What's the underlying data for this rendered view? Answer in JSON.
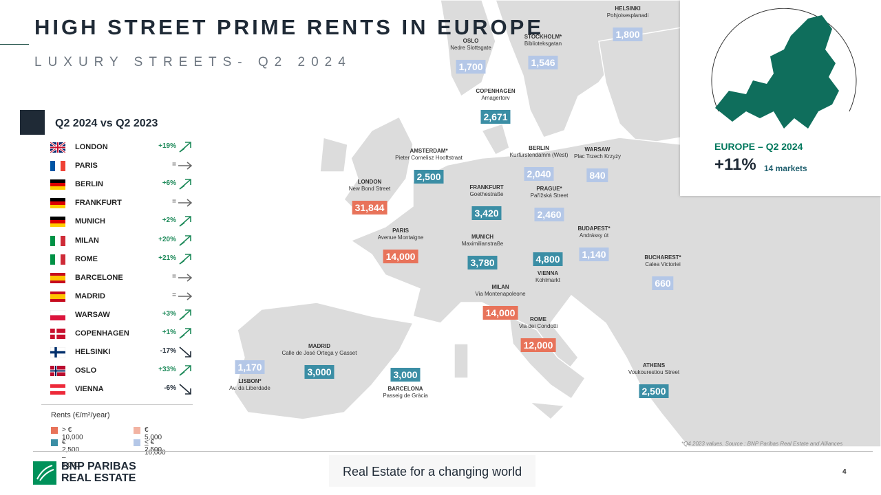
{
  "header": {
    "title": "HIGH STREET PRIME RENTS IN EUROPE",
    "subtitle": "LUXURY STREETS- Q2 2024"
  },
  "comparison": {
    "heading": "Q2 2024 vs Q2 2023",
    "rows": [
      {
        "city": "LONDON",
        "change": "+19%",
        "trend": "up"
      },
      {
        "city": "PARIS",
        "change": "=",
        "trend": "flat"
      },
      {
        "city": "BERLIN",
        "change": "+6%",
        "trend": "up"
      },
      {
        "city": "FRANKFURT",
        "change": "=",
        "trend": "flat"
      },
      {
        "city": "MUNICH",
        "change": "+2%",
        "trend": "up"
      },
      {
        "city": "MILAN",
        "change": "+20%",
        "trend": "up"
      },
      {
        "city": "ROME",
        "change": "+21%",
        "trend": "up"
      },
      {
        "city": "BARCELONE",
        "change": "=",
        "trend": "flat"
      },
      {
        "city": "MADRID",
        "change": "=",
        "trend": "flat"
      },
      {
        "city": "WARSAW",
        "change": "+3%",
        "trend": "up"
      },
      {
        "city": "COPENHAGEN",
        "change": "+1%",
        "trend": "up"
      },
      {
        "city": "HELSINKI",
        "change": "-17%",
        "trend": "down"
      },
      {
        "city": "OSLO",
        "change": "+33%",
        "trend": "up"
      },
      {
        "city": "VIENNA",
        "change": "-6%",
        "trend": "down"
      }
    ]
  },
  "legend": {
    "title": "Rents (€/m²/year)",
    "items": [
      {
        "label": "> € 10,000",
        "color": "#e8735a"
      },
      {
        "label": "€ 5,000 –10,000",
        "color": "#f2b3a2"
      },
      {
        "label": "€ 2,500 – 5,000",
        "color": "#3b8ea5"
      },
      {
        "label": "< € 2,500",
        "color": "#b4c7e7"
      }
    ]
  },
  "map": {
    "markers": [
      {
        "city": "HELSINKI",
        "street": "Pohjoisesplanadi",
        "rent": "1,800",
        "color": "#b4c7e7"
      },
      {
        "city": "OSLO",
        "street": "Nedre Slottsgate",
        "rent": "1,700",
        "color": "#b4c7e7"
      },
      {
        "city": "STOCKHOLM*",
        "street": "Biblioteksgatan",
        "rent": "1,546",
        "color": "#b4c7e7"
      },
      {
        "city": "COPENHAGEN",
        "street": "Amagertorv",
        "rent": "2,671",
        "color": "#3b8ea5"
      },
      {
        "city": "AMSTERDAM*",
        "street": "Pieter Cornelisz Hooftstraat",
        "rent": "2,500",
        "color": "#3b8ea5"
      },
      {
        "city": "BERLIN",
        "street": "Kurfürstendamm (West)",
        "rent": "2,040",
        "color": "#b4c7e7"
      },
      {
        "city": "WARSAW",
        "street": "Plac Trzech Krzyży",
        "rent": "840",
        "color": "#b4c7e7"
      },
      {
        "city": "LONDON",
        "street": "New Bond Street",
        "rent": "31,844",
        "color": "#e8735a"
      },
      {
        "city": "FRANKFURT",
        "street": "Goethestraße",
        "rent": "3,420",
        "color": "#3b8ea5"
      },
      {
        "city": "PRAGUE*",
        "street": "Pařížská Street",
        "rent": "2,460",
        "color": "#b4c7e7"
      },
      {
        "city": "PARIS",
        "street": "Avenue Montaigne",
        "rent": "14,000",
        "color": "#e8735a"
      },
      {
        "city": "MUNICH",
        "street": "Maximilianstraße",
        "rent": "3,780",
        "color": "#3b8ea5"
      },
      {
        "city": "VIENNA",
        "street": "Kohlmarkt",
        "rent": "4,800",
        "color": "#3b8ea5"
      },
      {
        "city": "BUDAPEST*",
        "street": "Andrássy út",
        "rent": "1,140",
        "color": "#b4c7e7"
      },
      {
        "city": "BUCHAREST*",
        "street": "Calea Victoriei",
        "rent": "660",
        "color": "#b4c7e7"
      },
      {
        "city": "MILAN",
        "street": "Via Montenapoleone",
        "rent": "14,000",
        "color": "#e8735a"
      },
      {
        "city": "ROME",
        "street": "Via dei Condotti",
        "rent": "12,000",
        "color": "#e8735a"
      },
      {
        "city": "LISBON*",
        "street": "Av. da Liberdade",
        "rent": "1,170",
        "color": "#b4c7e7"
      },
      {
        "city": "MADRID",
        "street": "Calle de José Ortega y Gasset",
        "rent": "3,000",
        "color": "#3b8ea5"
      },
      {
        "city": "BARCELONA",
        "street": "Passeig de Gràcia",
        "rent": "3,000",
        "color": "#3b8ea5"
      },
      {
        "city": "ATHENS",
        "street": "Voukourestiou Street",
        "rent": "2,500",
        "color": "#3b8ea5"
      }
    ]
  },
  "inset": {
    "heading": "EUROPE – Q2 2024",
    "value": "+11%",
    "note": "14 markets"
  },
  "footer": {
    "source": "*Q4 2023 values. Source : BNP Paribas Real Estate and Alliances",
    "logo_line1": "BNP PARIBAS",
    "logo_line2": "REAL ESTATE",
    "tagline": "Real Estate for a changing world",
    "page": "4"
  }
}
